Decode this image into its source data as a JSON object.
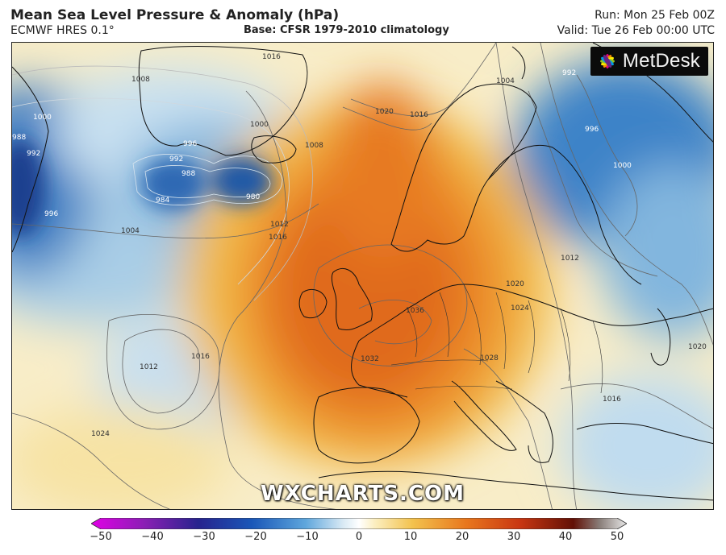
{
  "header": {
    "title": "Mean Sea Level Pressure & Anomaly (hPa)",
    "model": "ECMWF HRES 0.1°",
    "base": "Base: CFSR 1979-2010 climatology",
    "run": "Run: Mon 25 Feb 00Z",
    "valid": "Valid: Tue 26 Feb 00:00 UTC"
  },
  "logo": {
    "text": "MetDesk"
  },
  "watermark": "WXCHARTS.COM",
  "colorbar": {
    "unit": "hPa anomaly",
    "min": -50,
    "max": 50,
    "tick_labels": [
      "−50",
      "−40",
      "−30",
      "−20",
      "−10",
      "0",
      "10",
      "20",
      "30",
      "40",
      "50"
    ],
    "tick_values": [
      -50,
      -40,
      -30,
      -20,
      -10,
      0,
      10,
      20,
      30,
      40,
      50
    ],
    "stops": [
      {
        "value": -50,
        "color": "#e100e6"
      },
      {
        "value": -40,
        "color": "#8a1fb4"
      },
      {
        "value": -30,
        "color": "#27238e"
      },
      {
        "value": -20,
        "color": "#1a57b8"
      },
      {
        "value": -10,
        "color": "#5ea6dc"
      },
      {
        "value": -3,
        "color": "#d8e9f4"
      },
      {
        "value": 0,
        "color": "#ffffff"
      },
      {
        "value": 3,
        "color": "#fbeebf"
      },
      {
        "value": 10,
        "color": "#f3c24e"
      },
      {
        "value": 20,
        "color": "#e8771d"
      },
      {
        "value": 30,
        "color": "#c93712"
      },
      {
        "value": 40,
        "color": "#621006"
      },
      {
        "value": 45,
        "color": "#8a7f7a"
      },
      {
        "value": 50,
        "color": "#e8e8e8"
      }
    ]
  },
  "map": {
    "isobar_labels": [
      "1016",
      "1008",
      "1000",
      "1000",
      "996",
      "992",
      "988",
      "984",
      "980",
      "1008",
      "1020",
      "1016",
      "1012",
      "1016",
      "1004",
      "996",
      "988",
      "992",
      "1012",
      "1016",
      "1036",
      "1032",
      "1024",
      "1028",
      "1024",
      "1020",
      "1012",
      "1016",
      "992",
      "996",
      "1000",
      "1004",
      "1020"
    ],
    "centers": [
      {
        "type": "high",
        "pressure": 1036
      },
      {
        "type": "low",
        "pressure": 980
      },
      {
        "type": "low",
        "pressure": 984
      },
      {
        "type": "low",
        "pressure": 1012
      }
    ]
  }
}
